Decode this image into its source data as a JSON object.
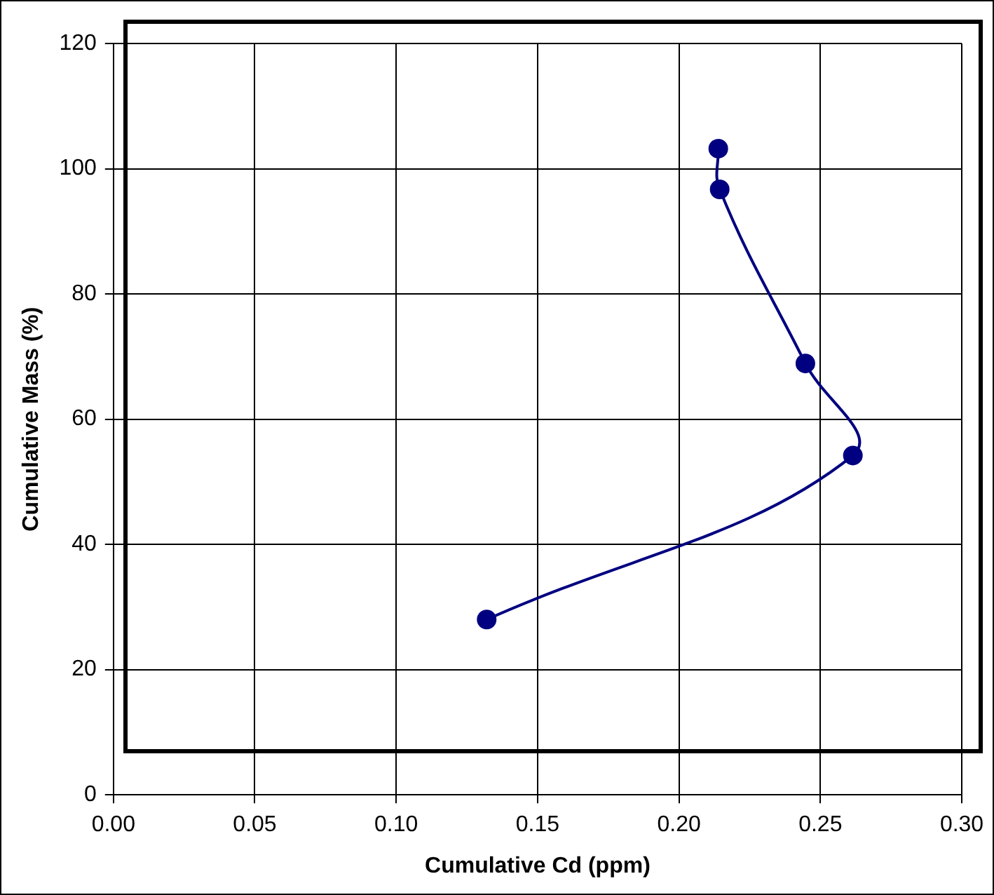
{
  "chart_data": {
    "type": "line",
    "xlabel": "Cumulative Cd (ppm)",
    "ylabel": "Cumulative Mass (%)",
    "x": [
      0.132,
      0.2615,
      0.2447,
      0.2144,
      0.2139
    ],
    "series": [
      {
        "color": "#000080",
        "values": [
          28.0,
          54.2,
          68.9,
          96.7,
          103.2
        ]
      }
    ],
    "xlim": [
      0,
      0.3
    ],
    "xticks": [
      {
        "value": 0,
        "label": "0.00"
      },
      {
        "value": 0.05,
        "label": "0.05"
      },
      {
        "value": 0.1,
        "label": "0.10"
      },
      {
        "value": 0.15,
        "label": "0.15"
      },
      {
        "value": 0.2,
        "label": "0.20"
      },
      {
        "value": 0.25,
        "label": "0.25"
      },
      {
        "value": 0.3,
        "label": "0.30"
      }
    ],
    "ylim": [
      0,
      120
    ],
    "yticks": [
      0,
      20,
      40,
      60,
      80,
      100,
      120
    ],
    "grid": true,
    "legend": false,
    "marker": "circle",
    "line_style": "solid"
  }
}
